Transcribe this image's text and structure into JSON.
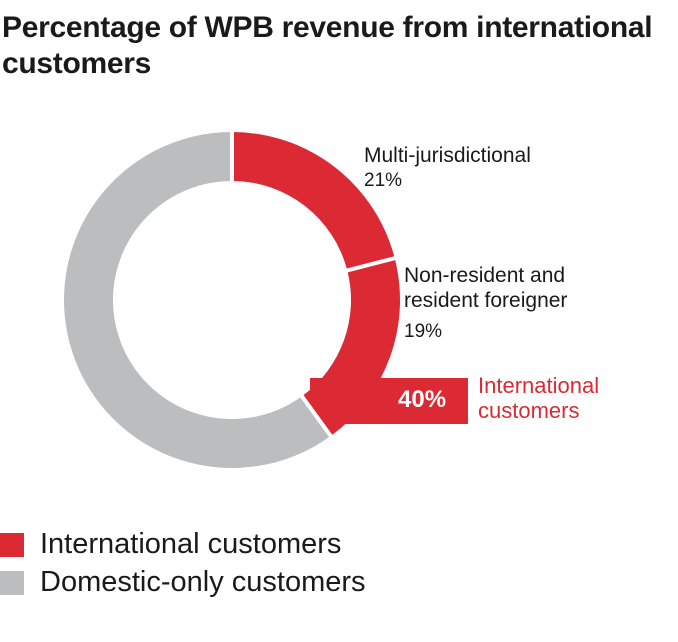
{
  "chart_data": {
    "type": "pie",
    "title": "Percentage of WPB revenue from international customers",
    "donut": true,
    "slices": [
      {
        "label": "Multi-jurisdictional",
        "value": 21,
        "value_label": "21%",
        "group": "International customers",
        "color": "#db2a33"
      },
      {
        "label": "Non-resident and resident foreigner",
        "value": 19,
        "value_label": "19%",
        "group": "International customers",
        "color": "#db2a33"
      },
      {
        "label": "Domestic-only customers",
        "value": 60,
        "group": "Domestic-only customers",
        "color": "#bcbdbf"
      }
    ],
    "annotation": {
      "value_label": "40%",
      "text": "International customers"
    },
    "legend": {
      "placement": "bottom-left",
      "items": [
        {
          "label": "International customers",
          "color": "#db2a33"
        },
        {
          "label": "Domestic-only customers",
          "color": "#bcbdbf"
        }
      ]
    }
  }
}
